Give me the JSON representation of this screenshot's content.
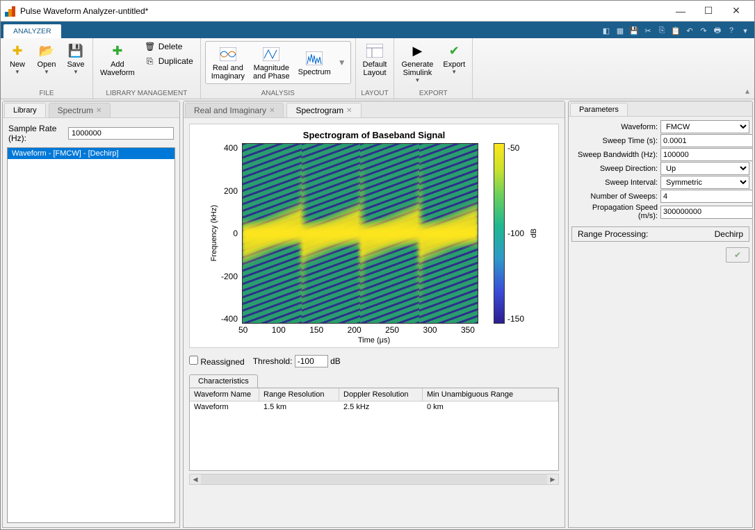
{
  "window": {
    "title": "Pulse Waveform Analyzer-untitled*"
  },
  "tabstrip": {
    "analyzer": "ANALYZER"
  },
  "toolstrip": {
    "file": {
      "label": "FILE",
      "new": "New",
      "open": "Open",
      "save": "Save"
    },
    "library": {
      "label": "LIBRARY MANAGEMENT",
      "add": "Add\nWaveform",
      "delete": "Delete",
      "duplicate": "Duplicate"
    },
    "analysis": {
      "label": "ANALYSIS",
      "realimag": "Real and\nImaginary",
      "magphase": "Magnitude\nand Phase",
      "spectrum": "Spectrum"
    },
    "layout": {
      "label": "LAYOUT",
      "default": "Default\nLayout"
    },
    "export": {
      "label": "EXPORT",
      "simulink": "Generate\nSimulink",
      "export": "Export"
    }
  },
  "library_panel": {
    "tab1": "Library",
    "tab2": "Spectrum",
    "sample_rate_label": "Sample Rate (Hz):",
    "sample_rate": "1000000",
    "items": [
      "Waveform - [FMCW] - [Dechirp]"
    ]
  },
  "center_panel": {
    "tab1": "Real and Imaginary",
    "tab2": "Spectrogram",
    "plot_title": "Spectrogram of Baseband Signal",
    "ylabel": "Frequency (kHz)",
    "xlabel": "Time (μs)",
    "clabel": "dB",
    "yticks": [
      "400",
      "200",
      "0",
      "-200",
      "-400"
    ],
    "xticks": [
      "50",
      "100",
      "150",
      "200",
      "250",
      "300",
      "350"
    ],
    "cticks": [
      "-50",
      "-100",
      "-150"
    ],
    "reassigned": "Reassigned",
    "threshold_label": "Threshold:",
    "threshold": "-100",
    "threshold_unit": "dB"
  },
  "characteristics": {
    "tab": "Characteristics",
    "headers": [
      "Waveform Name",
      "Range Resolution",
      "Doppler Resolution",
      "Min Unambiguous Range"
    ],
    "row": [
      "Waveform",
      "1.5 km",
      "2.5 kHz",
      "0 km"
    ]
  },
  "params_panel": {
    "tab": "Parameters",
    "rows": [
      {
        "label": "Waveform:",
        "type": "select",
        "value": "FMCW"
      },
      {
        "label": "Sweep Time (s):",
        "type": "text",
        "value": "0.0001"
      },
      {
        "label": "Sweep Bandwidth (Hz):",
        "type": "text",
        "value": "100000"
      },
      {
        "label": "Sweep Direction:",
        "type": "select",
        "value": "Up"
      },
      {
        "label": "Sweep Interval:",
        "type": "select",
        "value": "Symmetric"
      },
      {
        "label": "Number of Sweeps:",
        "type": "text",
        "value": "4"
      },
      {
        "label": "Propagation Speed (m/s):",
        "type": "text",
        "value": "300000000"
      }
    ],
    "range_processing_label": "Range Processing:",
    "range_processing_value": "Dechirp"
  },
  "colors": {
    "accent": "#1b5e8c",
    "selection": "#0078d7"
  }
}
